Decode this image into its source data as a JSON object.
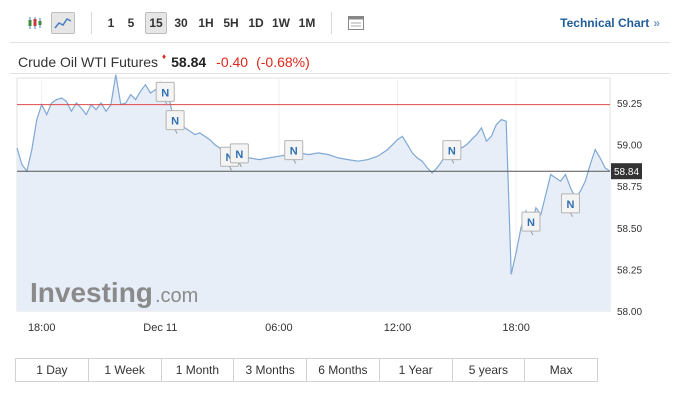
{
  "toolbar": {
    "intervals": [
      "1",
      "5",
      "15",
      "30",
      "1H",
      "5H",
      "1D",
      "1W",
      "1M"
    ],
    "active_interval": "15",
    "tech_link": "Technical Chart",
    "tech_arrow": "»"
  },
  "quote": {
    "name": "Crude Oil WTI Futures",
    "price": "58.84",
    "change": "-0.40",
    "change_pct": "(-0.68%)"
  },
  "logo": {
    "main": "Investing",
    "suffix": ".com"
  },
  "ranges": [
    "1 Day",
    "1 Week",
    "1 Month",
    "3 Months",
    "6 Months",
    "1 Year",
    "5 years",
    "Max"
  ],
  "colors": {
    "line": "#7fa8d4",
    "area": "#e7eef7",
    "prev_close": "#e04848",
    "current": "#555555",
    "text_red": "#e0261b",
    "link": "#1f5d99"
  },
  "chart_data": {
    "type": "area",
    "x_ticks": [
      {
        "x": 0.5,
        "label": "18:00"
      },
      {
        "x": 6.5,
        "label": "Dec 11"
      },
      {
        "x": 12.5,
        "label": "06:00"
      },
      {
        "x": 18.5,
        "label": "12:00"
      },
      {
        "x": 24.5,
        "label": "18:00"
      }
    ],
    "xlim": [
      -0.75,
      29.25
    ],
    "ylim": [
      58.0,
      59.4
    ],
    "y_ticks": [
      58.0,
      58.25,
      58.5,
      58.75,
      59.0,
      59.25
    ],
    "y_tick_labels": [
      "58.00",
      "58.25",
      "58.50",
      "58.75",
      "59.00",
      "59.25"
    ],
    "prev_close": 59.24,
    "current": 58.84,
    "current_label": "58.84",
    "values": [
      [
        -0.75,
        58.98
      ],
      [
        -0.5,
        58.88
      ],
      [
        -0.25,
        58.84
      ],
      [
        0,
        58.97
      ],
      [
        0.25,
        59.15
      ],
      [
        0.5,
        59.24
      ],
      [
        0.75,
        59.18
      ],
      [
        1.0,
        59.25
      ],
      [
        1.25,
        59.27
      ],
      [
        1.5,
        59.28
      ],
      [
        1.75,
        59.26
      ],
      [
        2.0,
        59.2
      ],
      [
        2.25,
        59.25
      ],
      [
        2.5,
        59.22
      ],
      [
        2.75,
        59.18
      ],
      [
        3.0,
        59.24
      ],
      [
        3.25,
        59.21
      ],
      [
        3.5,
        59.25
      ],
      [
        3.75,
        59.2
      ],
      [
        4.0,
        59.24
      ],
      [
        4.25,
        59.42
      ],
      [
        4.5,
        59.24
      ],
      [
        4.75,
        59.25
      ],
      [
        5.0,
        59.3
      ],
      [
        5.25,
        59.27
      ],
      [
        5.5,
        59.32
      ],
      [
        5.75,
        59.36
      ],
      [
        6.0,
        59.31
      ],
      [
        6.25,
        59.33
      ],
      [
        6.5,
        59.35
      ],
      [
        6.75,
        59.36
      ],
      [
        7.0,
        59.25
      ],
      [
        7.25,
        59.1
      ],
      [
        7.5,
        59.12
      ],
      [
        7.75,
        59.1
      ],
      [
        8.0,
        59.08
      ],
      [
        8.25,
        59.06
      ],
      [
        8.5,
        59.07
      ],
      [
        8.75,
        59.05
      ],
      [
        9.0,
        59.03
      ],
      [
        9.25,
        59.0
      ],
      [
        9.5,
        58.98
      ],
      [
        9.75,
        58.95
      ],
      [
        10.0,
        58.93
      ],
      [
        10.25,
        58.94
      ],
      [
        10.5,
        58.92
      ],
      [
        10.75,
        58.91
      ],
      [
        11.0,
        58.92
      ],
      [
        11.5,
        58.91
      ],
      [
        12.0,
        58.92
      ],
      [
        12.5,
        58.93
      ],
      [
        13.0,
        58.94
      ],
      [
        13.5,
        58.95
      ],
      [
        14.0,
        58.94
      ],
      [
        14.5,
        58.95
      ],
      [
        15.0,
        58.94
      ],
      [
        15.5,
        58.92
      ],
      [
        16.0,
        58.91
      ],
      [
        16.5,
        58.9
      ],
      [
        17.0,
        58.91
      ],
      [
        17.5,
        58.93
      ],
      [
        18.0,
        58.97
      ],
      [
        18.5,
        59.03
      ],
      [
        18.75,
        59.05
      ],
      [
        19.0,
        59.0
      ],
      [
        19.25,
        58.95
      ],
      [
        19.5,
        58.92
      ],
      [
        19.75,
        58.9
      ],
      [
        20.0,
        58.86
      ],
      [
        20.25,
        58.83
      ],
      [
        20.5,
        58.86
      ],
      [
        20.75,
        58.9
      ],
      [
        21.0,
        58.95
      ],
      [
        21.25,
        59.0
      ],
      [
        21.5,
        59.02
      ],
      [
        21.75,
        58.98
      ],
      [
        22.0,
        59.0
      ],
      [
        22.25,
        59.03
      ],
      [
        22.5,
        59.06
      ],
      [
        22.75,
        59.1
      ],
      [
        23.0,
        59.02
      ],
      [
        23.25,
        59.05
      ],
      [
        23.5,
        59.12
      ],
      [
        23.75,
        59.15
      ],
      [
        24.0,
        59.14
      ],
      [
        24.25,
        58.22
      ],
      [
        24.5,
        58.35
      ],
      [
        24.75,
        58.5
      ],
      [
        25.0,
        58.6
      ],
      [
        25.25,
        58.5
      ],
      [
        25.5,
        58.62
      ],
      [
        25.75,
        58.58
      ],
      [
        26.0,
        58.7
      ],
      [
        26.25,
        58.82
      ],
      [
        26.5,
        58.8
      ],
      [
        26.75,
        58.78
      ],
      [
        27.0,
        58.82
      ],
      [
        27.25,
        58.74
      ],
      [
        27.5,
        58.68
      ],
      [
        27.75,
        58.72
      ],
      [
        28.0,
        58.78
      ],
      [
        28.25,
        58.88
      ],
      [
        28.5,
        58.97
      ],
      [
        28.75,
        58.92
      ],
      [
        29.0,
        58.86
      ],
      [
        29.25,
        58.84
      ]
    ],
    "news_markers": [
      {
        "x": 6.75,
        "y": 59.32,
        "label": "N"
      },
      {
        "x": 7.25,
        "y": 59.15,
        "label": "N"
      },
      {
        "x": 10.0,
        "y": 58.93,
        "label": "N"
      },
      {
        "x": 10.5,
        "y": 58.95,
        "label": "N"
      },
      {
        "x": 13.25,
        "y": 58.97,
        "label": "N"
      },
      {
        "x": 21.25,
        "y": 58.97,
        "label": "N"
      },
      {
        "x": 25.25,
        "y": 58.54,
        "label": "N"
      },
      {
        "x": 27.25,
        "y": 58.65,
        "label": "N"
      }
    ]
  }
}
